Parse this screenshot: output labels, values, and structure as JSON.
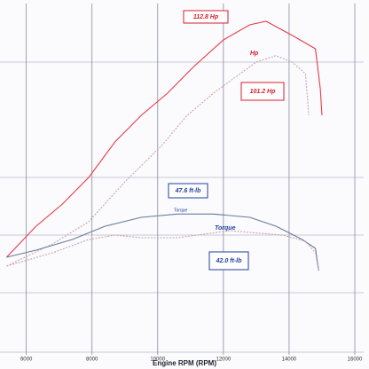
{
  "chart_data": {
    "type": "line",
    "x_label": "Engine RPM (RPM)",
    "annotations": [
      "112.8 Hp",
      "Hp",
      "101.2 Hp",
      "47.6 ft-lb",
      "Torque",
      "42.0 ft-lb",
      "Torque"
    ],
    "xlim": [
      5200,
      16000
    ],
    "xticks": [
      6000,
      8000,
      10000,
      12000,
      14000,
      16000
    ],
    "ylim": [
      0,
      120
    ],
    "grid": true,
    "series": [
      {
        "name": "Hp",
        "color": "#e8394a",
        "x": [
          5400,
          6300,
          7100,
          7900,
          8700,
          9500,
          10300,
          11100,
          12000,
          12800,
          13300,
          14100,
          14800,
          14950,
          15000
        ],
        "values": [
          33,
          43.5,
          51,
          60,
          72,
          81,
          88.5,
          97.5,
          106.5,
          111.6,
          112.8,
          108,
          103.5,
          90,
          81
        ]
      },
      {
        "name": "Hp",
        "color": "#c9a3b0",
        "dashed": true,
        "x": [
          5400,
          6800,
          7900,
          9000,
          10100,
          10900,
          11700,
          12500,
          13000,
          13600,
          14100,
          14500,
          14600
        ],
        "values": [
          30,
          37.5,
          45,
          58.5,
          70.5,
          81,
          88.5,
          95,
          99,
          101.2,
          99,
          95,
          81
        ]
      },
      {
        "name": "Torque",
        "color": "#6a7a9a",
        "x": [
          5400,
          6300,
          7400,
          8400,
          9500,
          10600,
          11700,
          12800,
          13600,
          14400,
          14800,
          14900
        ],
        "values": [
          33,
          35.4,
          39,
          43.5,
          46.5,
          47.6,
          47.6,
          46.5,
          43.5,
          39,
          36,
          28.5
        ]
      },
      {
        "name": "Torque",
        "color": "#c9a3b0",
        "dashed": true,
        "x": [
          5400,
          6800,
          7900,
          8700,
          9500,
          10600,
          12200,
          12800,
          13800,
          14500,
          14800,
          14900
        ],
        "values": [
          30,
          34.5,
          39,
          40.5,
          39.6,
          39.6,
          42.0,
          41.4,
          40.5,
          38.4,
          34.5,
          28.5
        ]
      }
    ]
  }
}
